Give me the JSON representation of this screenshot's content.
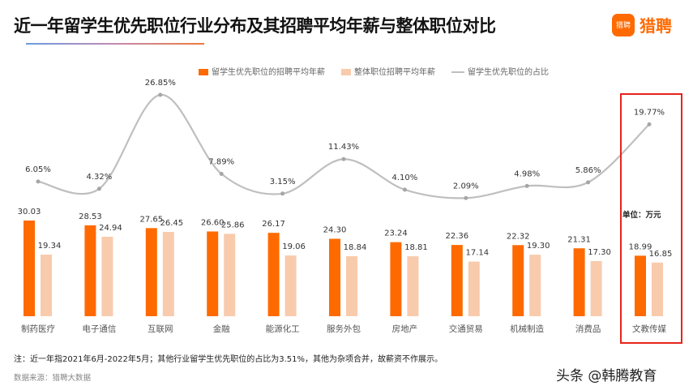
{
  "title": "近一年留学生优先职位行业分布及其招聘平均年薪与整体职位对比",
  "logo": {
    "badge": "猎聘",
    "text": "猎聘"
  },
  "unit_label": "单位：万元",
  "note": "注：近一年指2021年6月-2022年5月；其他行业留学生优先职位的占比为3.51%，其他为杂项合并，故薪资不作展示。",
  "source": "数据来源：猎聘大数据",
  "watermark": "头条 @韩腾教育",
  "colors": {
    "series1": "#ff6a00",
    "series2": "#f8cbad",
    "line": "#bfbfbf",
    "highlight": "#e8241c"
  },
  "chart_data": {
    "type": "bar+line",
    "categories": [
      "制药医疗",
      "电子通信",
      "互联网",
      "金融",
      "能源化工",
      "服务外包",
      "房地产",
      "交通贸易",
      "机械制造",
      "消费品",
      "文教传媒"
    ],
    "series": [
      {
        "name": "留学生优先职位的招聘平均年薪",
        "type": "bar",
        "values": [
          30.03,
          28.53,
          27.65,
          26.6,
          26.17,
          24.3,
          23.24,
          22.36,
          22.32,
          21.31,
          18.99
        ]
      },
      {
        "name": "整体职位招聘平均年薪",
        "type": "bar",
        "values": [
          19.34,
          24.94,
          26.45,
          25.86,
          19.06,
          18.84,
          18.81,
          17.14,
          19.3,
          17.3,
          16.85
        ]
      },
      {
        "name": "留学生优先职位的占比",
        "type": "line",
        "values": [
          6.05,
          4.32,
          26.85,
          7.89,
          3.15,
          11.43,
          4.1,
          2.09,
          4.98,
          5.86,
          19.77
        ],
        "unit": "%"
      }
    ],
    "legend": "top",
    "highlighted_category": "文教传媒",
    "grid": false
  }
}
